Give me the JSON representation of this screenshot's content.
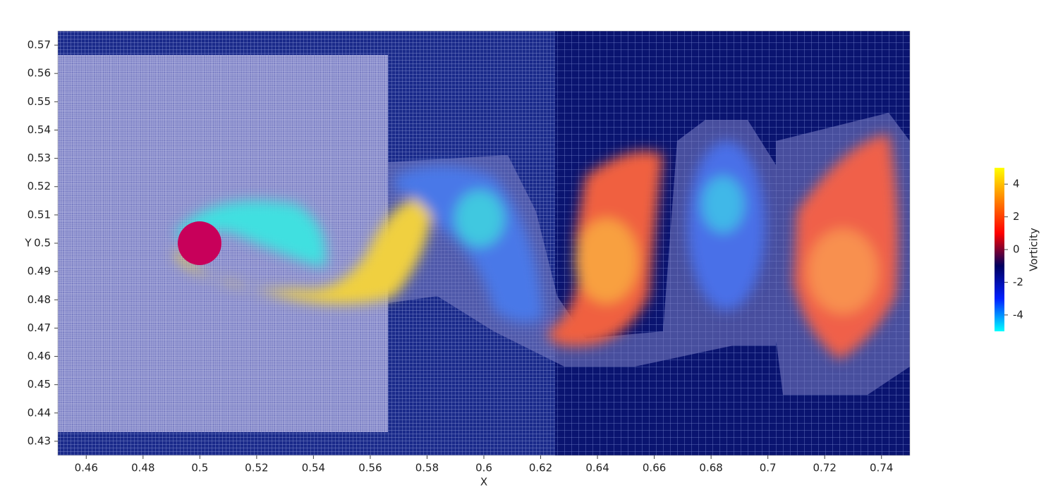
{
  "chart_data": {
    "type": "field",
    "xlabel": "X",
    "ylabel": "Y",
    "xlim": [
      0.45,
      0.75
    ],
    "ylim": [
      0.425,
      0.575
    ],
    "xticks": [
      0.46,
      0.48,
      0.5,
      0.52,
      0.54,
      0.56,
      0.58,
      0.6,
      0.62,
      0.64,
      0.66,
      0.68,
      0.7,
      0.72,
      0.74
    ],
    "yticks": [
      0.43,
      0.44,
      0.45,
      0.46,
      0.47,
      0.48,
      0.49,
      0.5,
      0.51,
      0.52,
      0.53,
      0.54,
      0.55,
      0.56,
      0.57
    ],
    "colorbar": {
      "label": "Vorticity",
      "lim": [
        -5,
        5
      ],
      "ticks": [
        4,
        2,
        0,
        -2,
        -4
      ],
      "colors": [
        "#00ffff",
        "#0020ff",
        "#000060",
        "#ff0000",
        "#ff8000",
        "#ffff00"
      ]
    }
  }
}
